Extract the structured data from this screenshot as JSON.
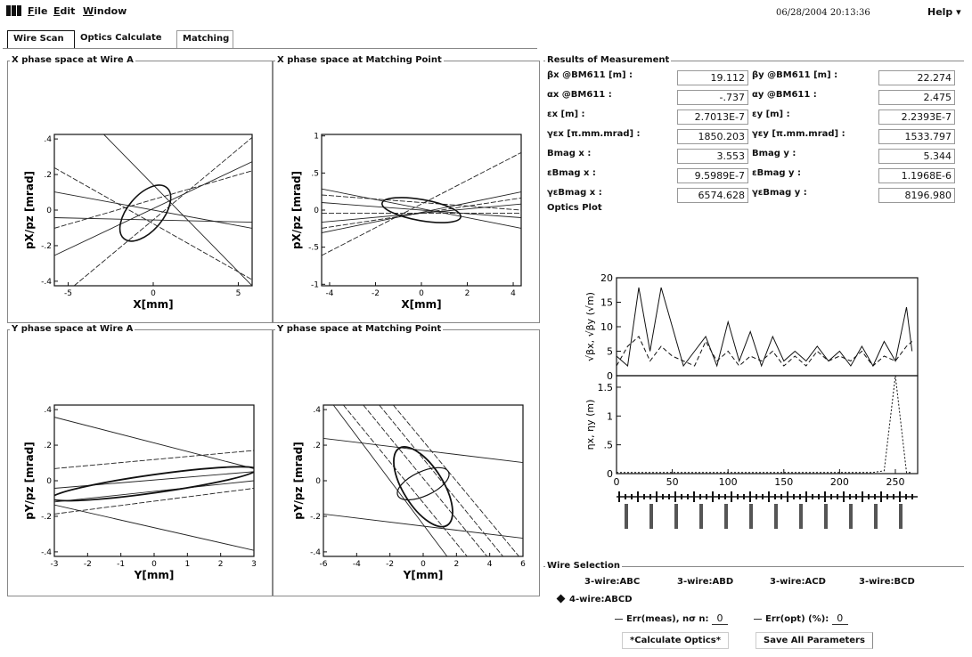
{
  "menu": {
    "file": "File",
    "edit": "Edit",
    "window": "Window",
    "help": "Help"
  },
  "datetime": "06/28/2004 20:13:36",
  "tabs": [
    {
      "label": "Wire Scan",
      "active": true
    },
    {
      "label": "Optics Calculate",
      "active": false
    },
    {
      "label": "Matching",
      "active": false
    }
  ],
  "plots": {
    "x_wire": {
      "title": "X phase space at Wire A",
      "xlabel": "X[mm]",
      "ylabel": "pX/pz [mrad]",
      "xticks": [
        "-5",
        "0",
        "5"
      ],
      "yticks": [
        ".4",
        ".2",
        "0",
        "-.2",
        "-.4"
      ]
    },
    "x_match": {
      "title": "X phase space at Matching Point",
      "xlabel": "X[mm]",
      "ylabel": "pX/pz [mrad]",
      "xticks": [
        "-4",
        "-2",
        "0",
        "2",
        "4"
      ],
      "yticks": [
        "1",
        ".5",
        "0",
        "-.5",
        "-1"
      ]
    },
    "y_wire": {
      "title": "Y phase space at Wire A",
      "xlabel": "Y[mm]",
      "ylabel": "pY/pz [mrad]",
      "xticks": [
        "-3",
        "-2",
        "-1",
        "0",
        "1",
        "2",
        "3"
      ],
      "yticks": [
        ".4",
        ".2",
        "0",
        "-.2",
        "-.4"
      ]
    },
    "y_match": {
      "title": "Y phase space at Matching Point",
      "xlabel": "Y[mm]",
      "ylabel": "pY/pz [mrad]",
      "xticks": [
        "-6",
        "-4",
        "-2",
        "0",
        "2",
        "4",
        "6"
      ],
      "yticks": [
        ".4",
        ".2",
        "0",
        "-.2",
        "-.4"
      ]
    }
  },
  "results": {
    "title": "Results of Measurement",
    "rows": [
      {
        "left_label": "βx @BM611 [m]  :",
        "left_value": "19.112",
        "right_label": "βy @BM611 [m]  :",
        "right_value": "22.274"
      },
      {
        "left_label": "αx @BM611      :",
        "left_value": "-.737",
        "right_label": "αy @BM611      :",
        "right_value": "2.475"
      },
      {
        "left_label": "εx [m] :",
        "left_value": "2.7013E-7",
        "right_label": "εy [m]  :",
        "right_value": "2.2393E-7"
      },
      {
        "left_label": "γεx [π.mm.mrad] :",
        "left_value": "1850.203",
        "right_label": "γεy [π.mm.mrad] :",
        "right_value": "1533.797"
      },
      {
        "left_label": "Bmag x :",
        "left_value": "3.553",
        "right_label": "Bmag y :",
        "right_value": "5.344"
      },
      {
        "left_label": "εBmag x :",
        "left_value": "9.5989E-7",
        "right_label": "εBmag y :",
        "right_value": "1.1968E-6"
      },
      {
        "left_label": "γεBmag x :",
        "left_value": "6574.628",
        "right_label": "γεBmag y :",
        "right_value": "8196.980"
      }
    ]
  },
  "optics_plot": {
    "title": "Optics Plot",
    "top_ylabel": "√βx, √βy (√m)",
    "bottom_ylabel": "ηx, ηy (m)",
    "top_yticks": [
      "20",
      "15",
      "10",
      "5",
      "0"
    ],
    "bottom_yticks": [
      "1.5",
      "1",
      ".5",
      "0"
    ],
    "xticks": [
      "0",
      "50",
      "100",
      "150",
      "200",
      "250"
    ]
  },
  "chart_data": {
    "type": "line",
    "title": "Optics Plot",
    "xlabel": "",
    "x": [
      0,
      10,
      20,
      30,
      40,
      50,
      60,
      70,
      80,
      90,
      100,
      110,
      120,
      130,
      140,
      150,
      160,
      170,
      180,
      190,
      200,
      210,
      220,
      230,
      240,
      250,
      260,
      265
    ],
    "series": [
      {
        "panel": "beta",
        "values": [
          4,
          2,
          18,
          5,
          18,
          10,
          2,
          5,
          8,
          2,
          11,
          3,
          9,
          2,
          8,
          3,
          5,
          3,
          6,
          3,
          5,
          2,
          6,
          2,
          7,
          3,
          14,
          5
        ]
      },
      {
        "panel": "beta",
        "values": [
          2,
          6,
          8,
          3,
          6,
          4,
          3,
          2,
          7,
          3,
          5,
          2,
          4,
          3,
          5,
          2,
          4,
          2,
          5,
          3,
          4,
          3,
          5,
          2,
          4,
          3,
          6,
          7
        ]
      },
      {
        "panel": "eta",
        "values": [
          0.02,
          0.02,
          0.02,
          0.02,
          0.02,
          0.02,
          0.02,
          0.02,
          0.02,
          0.02,
          0.02,
          0.02,
          0.02,
          0.02,
          0.02,
          0.02,
          0.02,
          0.02,
          0.02,
          0.02,
          0.02,
          0.02,
          0.02,
          0.02,
          0.05,
          1.7,
          0.02,
          0.02
        ]
      }
    ],
    "top_ylim": [
      0,
      20
    ],
    "bottom_ylim": [
      0,
      1.7
    ],
    "xlim": [
      0,
      270
    ]
  },
  "wire_selection": {
    "title": "Wire Selection",
    "options": [
      "3-wire:ABC",
      "3-wire:ABD",
      "3-wire:ACD",
      "3-wire:BCD",
      "4-wire:ABCD"
    ],
    "selected": "4-wire:ABCD",
    "err_meas_label": "Err(meas), nσ  n:",
    "err_meas_value": "0",
    "err_opt_label": "Err(opt)  (%):",
    "err_opt_value": "0",
    "calc_button": "*Calculate Optics*",
    "save_button": "Save All Parameters"
  }
}
